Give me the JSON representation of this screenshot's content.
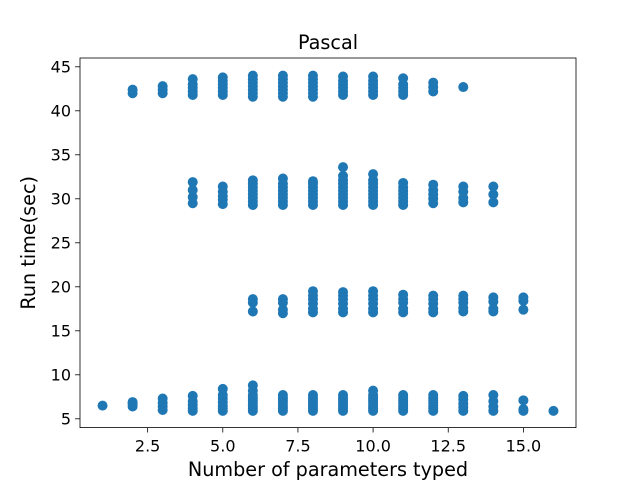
{
  "chart_data": {
    "type": "scatter",
    "title": "Pascal",
    "xlabel": "Number of parameters typed",
    "ylabel": "Run time(sec)",
    "xlim": [
      0.25,
      16.75
    ],
    "ylim": [
      4.0,
      46.0
    ],
    "xticks": [
      2.5,
      5.0,
      7.5,
      10.0,
      12.5,
      15.0
    ],
    "xtick_labels": [
      "2.5",
      "5.0",
      "7.5",
      "10.0",
      "12.5",
      "15.0"
    ],
    "yticks": [
      5,
      10,
      15,
      20,
      25,
      30,
      35,
      40,
      45
    ],
    "ytick_labels": [
      "5",
      "10",
      "15",
      "20",
      "25",
      "30",
      "35",
      "40",
      "45"
    ],
    "grid": false,
    "legend": "none",
    "marker_color": "#1f77b4",
    "series": [
      {
        "points": [
          [
            1,
            6.5
          ],
          [
            2,
            6.4
          ],
          [
            2,
            6.7
          ],
          [
            2,
            6.9
          ],
          [
            2,
            42.0
          ],
          [
            2,
            42.4
          ],
          [
            3,
            6.0
          ],
          [
            3,
            6.4
          ],
          [
            3,
            6.8
          ],
          [
            3,
            7.3
          ],
          [
            3,
            42.0
          ],
          [
            3,
            42.4
          ],
          [
            3,
            42.8
          ],
          [
            4,
            5.9
          ],
          [
            4,
            6.2
          ],
          [
            4,
            6.6
          ],
          [
            4,
            7.0
          ],
          [
            4,
            7.6
          ],
          [
            4,
            29.5
          ],
          [
            4,
            30.2
          ],
          [
            4,
            31.0
          ],
          [
            4,
            31.9
          ],
          [
            4,
            41.8
          ],
          [
            4,
            42.2
          ],
          [
            4,
            42.6
          ],
          [
            4,
            43.0
          ],
          [
            4,
            43.6
          ],
          [
            5,
            5.9
          ],
          [
            5,
            6.2
          ],
          [
            5,
            6.5
          ],
          [
            5,
            6.9
          ],
          [
            5,
            7.3
          ],
          [
            5,
            7.7
          ],
          [
            5,
            8.4
          ],
          [
            5,
            29.4
          ],
          [
            5,
            29.9
          ],
          [
            5,
            30.3
          ],
          [
            5,
            30.8
          ],
          [
            5,
            31.4
          ],
          [
            5,
            41.8
          ],
          [
            5,
            42.2
          ],
          [
            5,
            42.6
          ],
          [
            5,
            43.0
          ],
          [
            5,
            43.4
          ],
          [
            5,
            43.8
          ],
          [
            6,
            5.9
          ],
          [
            6,
            6.2
          ],
          [
            6,
            6.5
          ],
          [
            6,
            6.8
          ],
          [
            6,
            7.1
          ],
          [
            6,
            7.4
          ],
          [
            6,
            7.7
          ],
          [
            6,
            8.2
          ],
          [
            6,
            8.8
          ],
          [
            6,
            17.2
          ],
          [
            6,
            18.2
          ],
          [
            6,
            18.6
          ],
          [
            6,
            29.3
          ],
          [
            6,
            29.7
          ],
          [
            6,
            30.1
          ],
          [
            6,
            30.5
          ],
          [
            6,
            30.9
          ],
          [
            6,
            31.3
          ],
          [
            6,
            31.7
          ],
          [
            6,
            32.1
          ],
          [
            6,
            41.6
          ],
          [
            6,
            42.0
          ],
          [
            6,
            42.4
          ],
          [
            6,
            42.8
          ],
          [
            6,
            43.2
          ],
          [
            6,
            43.6
          ],
          [
            6,
            44.0
          ],
          [
            7,
            5.9
          ],
          [
            7,
            6.2
          ],
          [
            7,
            6.5
          ],
          [
            7,
            6.8
          ],
          [
            7,
            7.1
          ],
          [
            7,
            7.4
          ],
          [
            7,
            7.7
          ],
          [
            7,
            17.0
          ],
          [
            7,
            17.4
          ],
          [
            7,
            18.2
          ],
          [
            7,
            18.6
          ],
          [
            7,
            29.3
          ],
          [
            7,
            29.7
          ],
          [
            7,
            30.1
          ],
          [
            7,
            30.5
          ],
          [
            7,
            30.9
          ],
          [
            7,
            31.3
          ],
          [
            7,
            31.7
          ],
          [
            7,
            32.3
          ],
          [
            7,
            41.6
          ],
          [
            7,
            42.0
          ],
          [
            7,
            42.4
          ],
          [
            7,
            42.8
          ],
          [
            7,
            43.2
          ],
          [
            7,
            43.6
          ],
          [
            7,
            44.0
          ],
          [
            8,
            5.9
          ],
          [
            8,
            6.2
          ],
          [
            8,
            6.5
          ],
          [
            8,
            6.8
          ],
          [
            8,
            7.1
          ],
          [
            8,
            7.4
          ],
          [
            8,
            7.7
          ],
          [
            8,
            17.1
          ],
          [
            8,
            17.5
          ],
          [
            8,
            18.1
          ],
          [
            8,
            18.6
          ],
          [
            8,
            19.0
          ],
          [
            8,
            19.5
          ],
          [
            8,
            29.3
          ],
          [
            8,
            29.7
          ],
          [
            8,
            30.1
          ],
          [
            8,
            30.5
          ],
          [
            8,
            30.9
          ],
          [
            8,
            31.3
          ],
          [
            8,
            31.7
          ],
          [
            8,
            32.0
          ],
          [
            8,
            41.6
          ],
          [
            8,
            42.0
          ],
          [
            8,
            42.4
          ],
          [
            8,
            42.8
          ],
          [
            8,
            43.2
          ],
          [
            8,
            43.6
          ],
          [
            8,
            44.0
          ],
          [
            9,
            5.9
          ],
          [
            9,
            6.2
          ],
          [
            9,
            6.5
          ],
          [
            9,
            6.8
          ],
          [
            9,
            7.1
          ],
          [
            9,
            7.4
          ],
          [
            9,
            7.7
          ],
          [
            9,
            17.1
          ],
          [
            9,
            17.5
          ],
          [
            9,
            18.1
          ],
          [
            9,
            18.6
          ],
          [
            9,
            19.0
          ],
          [
            9,
            19.4
          ],
          [
            9,
            29.3
          ],
          [
            9,
            29.7
          ],
          [
            9,
            30.1
          ],
          [
            9,
            30.5
          ],
          [
            9,
            30.9
          ],
          [
            9,
            31.3
          ],
          [
            9,
            31.7
          ],
          [
            9,
            32.1
          ],
          [
            9,
            32.6
          ],
          [
            9,
            33.6
          ],
          [
            9,
            41.8
          ],
          [
            9,
            42.2
          ],
          [
            9,
            42.6
          ],
          [
            9,
            43.0
          ],
          [
            9,
            43.4
          ],
          [
            9,
            43.9
          ],
          [
            10,
            5.9
          ],
          [
            10,
            6.2
          ],
          [
            10,
            6.5
          ],
          [
            10,
            6.8
          ],
          [
            10,
            7.1
          ],
          [
            10,
            7.4
          ],
          [
            10,
            7.7
          ],
          [
            10,
            8.2
          ],
          [
            10,
            17.1
          ],
          [
            10,
            17.5
          ],
          [
            10,
            18.1
          ],
          [
            10,
            18.6
          ],
          [
            10,
            19.0
          ],
          [
            10,
            19.5
          ],
          [
            10,
            29.3
          ],
          [
            10,
            29.7
          ],
          [
            10,
            30.1
          ],
          [
            10,
            30.5
          ],
          [
            10,
            30.9
          ],
          [
            10,
            31.3
          ],
          [
            10,
            31.7
          ],
          [
            10,
            32.1
          ],
          [
            10,
            32.8
          ],
          [
            10,
            41.8
          ],
          [
            10,
            42.2
          ],
          [
            10,
            42.6
          ],
          [
            10,
            43.0
          ],
          [
            10,
            43.4
          ],
          [
            10,
            43.9
          ],
          [
            11,
            5.9
          ],
          [
            11,
            6.2
          ],
          [
            11,
            6.5
          ],
          [
            11,
            6.8
          ],
          [
            11,
            7.1
          ],
          [
            11,
            7.4
          ],
          [
            11,
            7.7
          ],
          [
            11,
            17.1
          ],
          [
            11,
            17.5
          ],
          [
            11,
            18.2
          ],
          [
            11,
            18.6
          ],
          [
            11,
            19.1
          ],
          [
            11,
            29.3
          ],
          [
            11,
            29.7
          ],
          [
            11,
            30.1
          ],
          [
            11,
            30.5
          ],
          [
            11,
            30.9
          ],
          [
            11,
            31.3
          ],
          [
            11,
            31.8
          ],
          [
            11,
            41.8
          ],
          [
            11,
            42.2
          ],
          [
            11,
            42.6
          ],
          [
            11,
            43.0
          ],
          [
            11,
            43.7
          ],
          [
            12,
            5.9
          ],
          [
            12,
            6.2
          ],
          [
            12,
            6.5
          ],
          [
            12,
            6.8
          ],
          [
            12,
            7.1
          ],
          [
            12,
            7.4
          ],
          [
            12,
            7.7
          ],
          [
            12,
            17.1
          ],
          [
            12,
            17.5
          ],
          [
            12,
            18.1
          ],
          [
            12,
            18.6
          ],
          [
            12,
            19.0
          ],
          [
            12,
            29.5
          ],
          [
            12,
            30.0
          ],
          [
            12,
            30.5
          ],
          [
            12,
            31.0
          ],
          [
            12,
            31.6
          ],
          [
            12,
            42.2
          ],
          [
            12,
            42.7
          ],
          [
            12,
            43.2
          ],
          [
            13,
            5.9
          ],
          [
            13,
            6.3
          ],
          [
            13,
            6.7
          ],
          [
            13,
            7.2
          ],
          [
            13,
            7.6
          ],
          [
            13,
            17.2
          ],
          [
            13,
            17.6
          ],
          [
            13,
            18.2
          ],
          [
            13,
            18.6
          ],
          [
            13,
            19.0
          ],
          [
            13,
            29.6
          ],
          [
            13,
            30.1
          ],
          [
            13,
            30.8
          ],
          [
            13,
            31.4
          ],
          [
            13,
            42.7
          ],
          [
            14,
            5.9
          ],
          [
            14,
            6.4
          ],
          [
            14,
            7.0
          ],
          [
            14,
            7.7
          ],
          [
            14,
            17.2
          ],
          [
            14,
            17.5
          ],
          [
            14,
            18.3
          ],
          [
            14,
            18.8
          ],
          [
            14,
            29.6
          ],
          [
            14,
            30.5
          ],
          [
            14,
            31.4
          ],
          [
            15,
            5.9
          ],
          [
            15,
            6.1
          ],
          [
            15,
            7.1
          ],
          [
            15,
            17.4
          ],
          [
            15,
            18.4
          ],
          [
            15,
            18.8
          ],
          [
            16,
            5.9
          ]
        ]
      }
    ]
  }
}
